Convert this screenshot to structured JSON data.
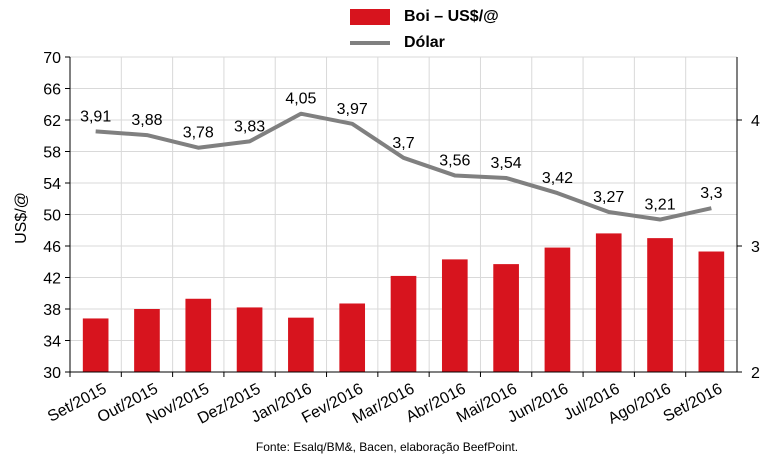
{
  "chart_data": {
    "type": "bar",
    "categories": [
      "Set/2015",
      "Out/2015",
      "Nov/2015",
      "Dez/2015",
      "Jan/2016",
      "Fev/2016",
      "Mar/2016",
      "Abr/2016",
      "Mai/2016",
      "Jun/2016",
      "Jul/2016",
      "Ago/2016",
      "Set/2016"
    ],
    "series": [
      {
        "name": "Boi – US$/@",
        "type": "bar",
        "axis": "left",
        "color": "#d7141e",
        "values": [
          36.8,
          38.0,
          39.3,
          38.2,
          36.9,
          38.7,
          42.2,
          44.3,
          43.7,
          45.8,
          47.6,
          47.0,
          45.3
        ]
      },
      {
        "name": "Dólar",
        "type": "line",
        "axis": "right",
        "color": "#808080",
        "values": [
          3.91,
          3.88,
          3.78,
          3.83,
          4.05,
          3.97,
          3.7,
          3.56,
          3.54,
          3.42,
          3.27,
          3.21,
          3.3
        ],
        "labels": [
          "3,91",
          "3,88",
          "3,78",
          "3,83",
          "4,05",
          "3,97",
          "3,7",
          "3,56",
          "3,54",
          "3,42",
          "3,27",
          "3,21",
          "3,3"
        ]
      }
    ],
    "ylabel": "US$/@",
    "ylim": [
      30,
      70
    ],
    "yticks": [
      "30",
      "34",
      "38",
      "42",
      "46",
      "50",
      "54",
      "58",
      "62",
      "66",
      "70"
    ],
    "y2lim": [
      2,
      4.5
    ],
    "y2ticks": [
      "2",
      "3",
      "4"
    ],
    "grid": true,
    "legend_position": "top-center",
    "source": "Fonte: Esalq/BM&, Bacen, elaboração BeefPoint."
  }
}
